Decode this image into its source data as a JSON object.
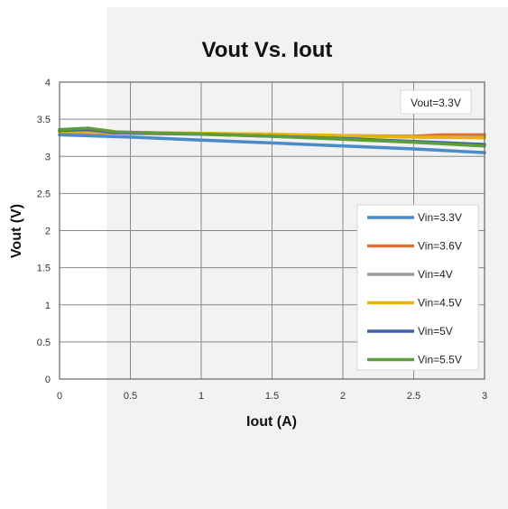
{
  "chart_data": {
    "type": "line",
    "title": "Vout Vs. Iout",
    "xlabel": "Iout (A)",
    "ylabel": "Vout (V)",
    "xlim": [
      0,
      3
    ],
    "ylim": [
      0,
      4
    ],
    "xticks": [
      "0",
      "0.5",
      "1",
      "1.5",
      "2",
      "2.5",
      "3"
    ],
    "yticks": [
      "0",
      "0.5",
      "1",
      "1.5",
      "2",
      "2.5",
      "3",
      "3.5",
      "4"
    ],
    "grid": true,
    "legend_position": "right",
    "annotation": "Vout=3.3V",
    "series": [
      {
        "name": "Vin=3.3V",
        "color": "#4a8bc8",
        "x": [
          0,
          0.5,
          1,
          1.5,
          2,
          2.5,
          3
        ],
        "y": [
          3.29,
          3.26,
          3.22,
          3.18,
          3.14,
          3.1,
          3.05
        ]
      },
      {
        "name": "Vin=3.6V",
        "color": "#e07030",
        "x": [
          0,
          0.5,
          1,
          1.5,
          2,
          2.5,
          2.7,
          3
        ],
        "y": [
          3.33,
          3.31,
          3.3,
          3.29,
          3.28,
          3.27,
          3.29,
          3.29
        ]
      },
      {
        "name": "Vin=4V",
        "color": "#9a9a9a",
        "x": [
          0,
          0.5,
          1,
          1.5,
          2,
          2.5,
          3
        ],
        "y": [
          3.33,
          3.32,
          3.31,
          3.29,
          3.28,
          3.26,
          3.26
        ]
      },
      {
        "name": "Vin=4.5V",
        "color": "#e8b20a",
        "x": [
          0,
          0.5,
          1,
          1.5,
          2,
          2.5,
          3
        ],
        "y": [
          3.34,
          3.32,
          3.31,
          3.3,
          3.28,
          3.26,
          3.25
        ]
      },
      {
        "name": "Vin=5V",
        "color": "#3a62b0",
        "x": [
          0,
          0.2,
          0.4,
          1,
          1.5,
          2,
          2.5,
          3
        ],
        "y": [
          3.35,
          3.36,
          3.32,
          3.3,
          3.27,
          3.24,
          3.2,
          3.16
        ]
      },
      {
        "name": "Vin=5.5V",
        "color": "#5e9e3a",
        "x": [
          0,
          0.2,
          0.4,
          1,
          1.5,
          2,
          2.5,
          3
        ],
        "y": [
          3.36,
          3.38,
          3.33,
          3.3,
          3.27,
          3.23,
          3.19,
          3.14
        ]
      }
    ]
  }
}
